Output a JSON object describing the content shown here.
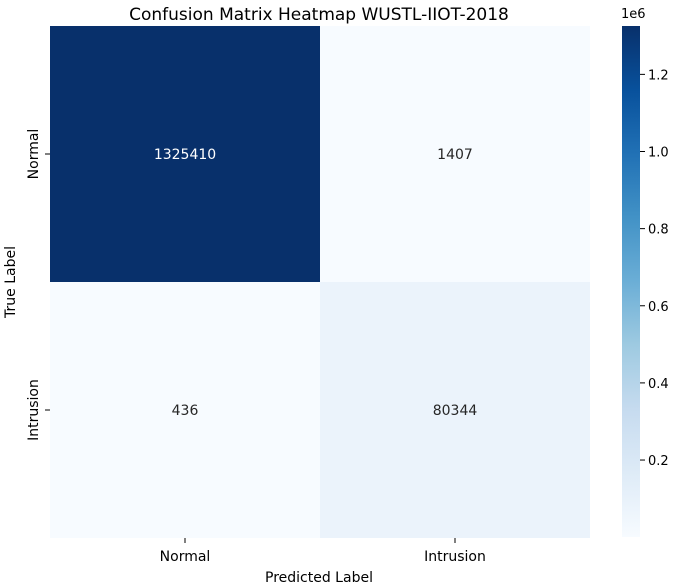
{
  "chart_data": {
    "type": "heatmap",
    "title": "Confusion Matrix Heatmap WUSTL-IIOT-2018",
    "xlabel": "Predicted Label",
    "ylabel": "True Label",
    "x_categories": [
      "Normal",
      "Intrusion"
    ],
    "y_categories": [
      "Normal",
      "Intrusion"
    ],
    "values": [
      [
        1325410,
        1407
      ],
      [
        436,
        80344
      ]
    ],
    "colormap": "Blues",
    "colorbar": {
      "multiplier": "1e6",
      "ticks": [
        0.2,
        0.4,
        0.6,
        0.8,
        1.0,
        1.2
      ],
      "tick_labels": [
        "0.2",
        "0.4",
        "0.6",
        "0.8",
        "1.0",
        "1.2"
      ],
      "range": [
        436,
        1325410
      ]
    },
    "grid": false
  }
}
